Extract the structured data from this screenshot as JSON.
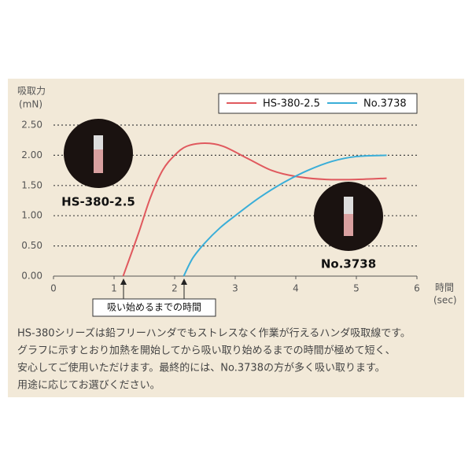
{
  "chart_data": {
    "type": "line",
    "y_label": [
      "吸取力",
      "(mN)"
    ],
    "x_label": [
      "時間",
      "(sec)"
    ],
    "xlim": [
      0,
      6
    ],
    "xticks": [
      0,
      1,
      2,
      3,
      4,
      5,
      6
    ],
    "ylim": [
      0,
      2.5
    ],
    "yticks": [
      {
        "value": 0,
        "label": "0.00"
      },
      {
        "value": 0.5,
        "label": "0.50"
      },
      {
        "value": 1,
        "label": "1.00"
      },
      {
        "value": 1.5,
        "label": "1.50"
      },
      {
        "value": 2,
        "label": "2.00"
      },
      {
        "value": 2.5,
        "label": "2.50"
      }
    ],
    "grid": true,
    "series": [
      {
        "name": "HS-380-2.5",
        "color": "#e0595e",
        "x": [
          1.15,
          1.4,
          1.6,
          1.8,
          2.0,
          2.2,
          2.5,
          2.8,
          3.2,
          3.6,
          4.0,
          4.5,
          5.0,
          5.5
        ],
        "values": [
          0,
          0.7,
          1.3,
          1.75,
          2.0,
          2.15,
          2.2,
          2.15,
          1.95,
          1.75,
          1.65,
          1.6,
          1.6,
          1.62
        ]
      },
      {
        "name": "No.3738",
        "color": "#3aaed8",
        "x": [
          2.15,
          2.3,
          2.5,
          2.75,
          3.0,
          3.4,
          3.8,
          4.2,
          4.6,
          5.0,
          5.5
        ],
        "values": [
          0,
          0.3,
          0.55,
          0.8,
          1.0,
          1.3,
          1.55,
          1.75,
          1.9,
          1.98,
          2.0
        ]
      }
    ],
    "photo_labels": [
      "HS-380-2.5",
      "No.3738"
    ],
    "annotation": "吸い始めるまでの時間",
    "description": [
      "HS-380シリーズは鉛フリーハンダでもストレスなく作業が行えるハンダ吸取線です。",
      "グラフに示すとおり加熱を開始してから吸い取り始めるまでの時間が極めて短く、",
      "安心してご使用いただけます。最終的には、No.3738の方が多く吸い取ります。",
      "用途に応じてお選びください。"
    ]
  }
}
